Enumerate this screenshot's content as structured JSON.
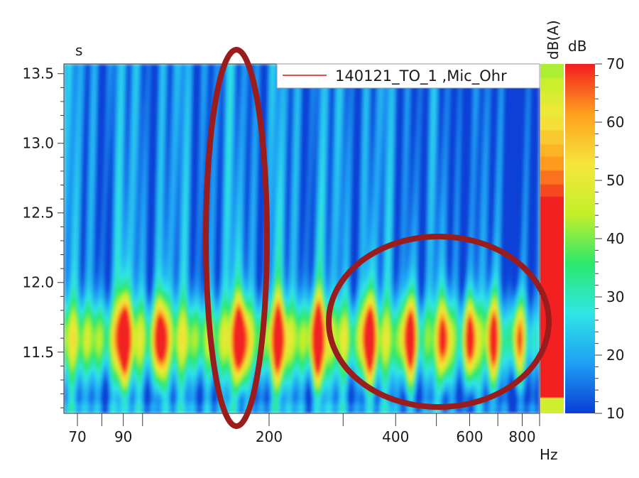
{
  "chart_data": {
    "type": "heatmap",
    "x_unit": "Hz",
    "y_unit": "s",
    "x_scale": "log",
    "xlim": [
      65,
      880
    ],
    "ylim": [
      11.06,
      13.57
    ],
    "x_ticks": [
      70,
      90,
      200,
      400,
      600,
      800
    ],
    "x_minor_ticks": [
      80,
      100,
      300,
      500,
      700
    ],
    "y_ticks": [
      11.5,
      12.0,
      12.5,
      13.0,
      13.5
    ],
    "y_tick_labels": [
      "11.5",
      "12.0",
      "12.5",
      "13.0",
      "13.5"
    ],
    "legend": {
      "entry": "140121_TO_1 ,Mic_Ohr",
      "color": "#e05050",
      "position": "top-right"
    },
    "colorbar": {
      "unit": "dB",
      "range": [
        10,
        70
      ],
      "ticks": [
        10,
        20,
        30,
        40,
        50,
        60,
        70
      ],
      "colors": [
        "#0b3fd6",
        "#1fa0f5",
        "#2fe6e6",
        "#2ce86c",
        "#c4f02a",
        "#f5e63c",
        "#ffa21e",
        "#f22020"
      ]
    },
    "level_bar": {
      "unit": "dB(A)"
    },
    "bands": [
      {
        "freq": 90,
        "level_db": 70
      },
      {
        "freq": 110,
        "level_db": 58
      },
      {
        "freq": 170,
        "level_db": 70
      },
      {
        "freq": 210,
        "level_db": 60
      },
      {
        "freq": 260,
        "level_db": 70
      },
      {
        "freq": 345,
        "level_db": 68
      },
      {
        "freq": 430,
        "level_db": 66
      },
      {
        "freq": 520,
        "level_db": 56
      },
      {
        "freq": 600,
        "level_db": 65
      },
      {
        "freq": 680,
        "level_db": 64
      },
      {
        "freq": 780,
        "level_db": 56
      }
    ],
    "annotations": [
      {
        "shape": "ellipse",
        "color": "#9b1c1c",
        "center": [
          168,
          12.23
        ],
        "note": ""
      },
      {
        "shape": "ellipse",
        "color": "#9b1c1c",
        "center": [
          510,
          11.6
        ],
        "note": ""
      }
    ]
  }
}
